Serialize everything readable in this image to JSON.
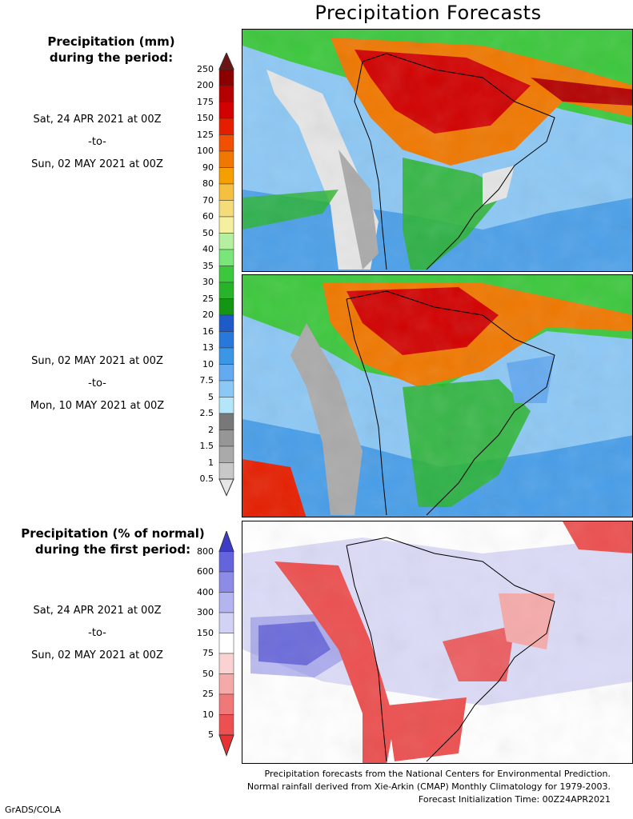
{
  "title": "Precipitation Forecasts",
  "panel1": {
    "heading_line1": "Precipitation (mm)",
    "heading_line2": "during the period:",
    "start": "Sat, 24 APR 2021 at 00Z",
    "sep": "-to-",
    "end": "Sun, 02 MAY 2021 at 00Z"
  },
  "panel2": {
    "start": "Sun, 02 MAY 2021 at 00Z",
    "sep": "-to-",
    "end": "Mon, 10 MAY 2021 at 00Z"
  },
  "panel3": {
    "heading_line1": "Precipitation (% of normal)",
    "heading_line2": "during the first period:",
    "start": "Sat, 24 APR 2021 at 00Z",
    "sep": "-to-",
    "end": "Sun, 02 MAY 2021 at 00Z"
  },
  "mm_scale": {
    "ticks": [
      "250",
      "200",
      "175",
      "150",
      "125",
      "100",
      "90",
      "80",
      "70",
      "60",
      "50",
      "40",
      "35",
      "30",
      "25",
      "20",
      "16",
      "13",
      "10",
      "7.5",
      "5",
      "2.5",
      "2",
      "1.5",
      "1",
      "0.5"
    ],
    "colors": [
      "#6e1414",
      "#8c0000",
      "#b40000",
      "#d20000",
      "#e61e00",
      "#f05000",
      "#f07800",
      "#f5a000",
      "#f5c040",
      "#f5dc78",
      "#f5f0a0",
      "#b4f0a0",
      "#78e678",
      "#3cc83c",
      "#28b428",
      "#149614",
      "#1e5ac8",
      "#2878dc",
      "#3c96e6",
      "#64aaf0",
      "#8cc8f5",
      "#b4e6fa",
      "#787878",
      "#969696",
      "#aaaaaa",
      "#c8c8c8",
      "#e6e6e6"
    ]
  },
  "pct_scale": {
    "ticks": [
      "800",
      "600",
      "400",
      "300",
      "150",
      "75",
      "50",
      "25",
      "10",
      "5"
    ],
    "colors": [
      "#3c3cc8",
      "#6464dc",
      "#8c8ce6",
      "#b4b4f0",
      "#d2d2f5",
      "#ffffff",
      "#fad2d2",
      "#f5aaaa",
      "#f07878",
      "#ec5050",
      "#e63232"
    ]
  },
  "footer": {
    "line1": "Precipitation forecasts from the National Centers for Environmental Prediction.",
    "line2": "Normal rainfall derived from Xie-Arkin (CMAP) Monthly Climatology for 1979-2003.",
    "line3": "Forecast Initialization Time: 00Z24APR2021"
  },
  "credit": "GrADS/COLA"
}
